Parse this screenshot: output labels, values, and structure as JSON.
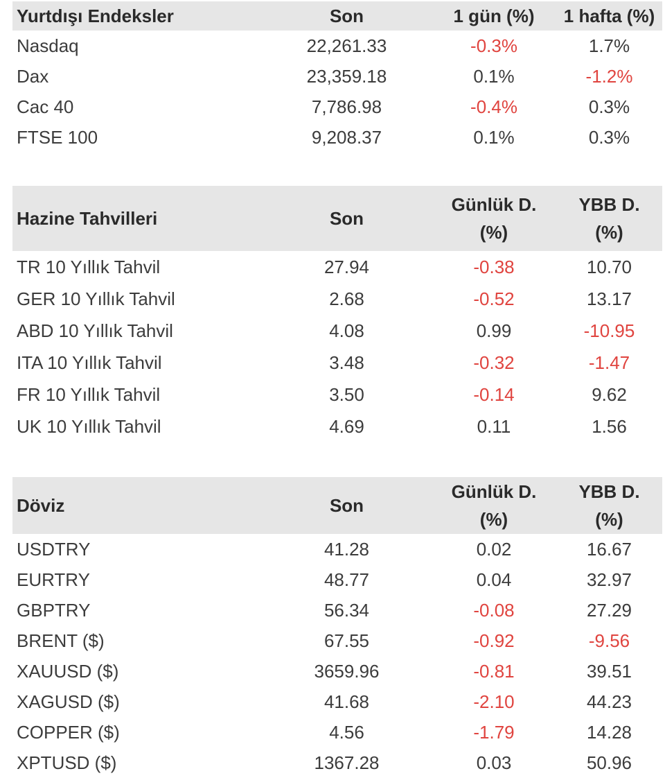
{
  "foreign_indices": {
    "headers": [
      "Yurtdışı Endeksler",
      "Son",
      "1 gün (%)",
      "1 hafta (%)"
    ],
    "rows": [
      {
        "name": "Nasdaq",
        "last": "22,261.33",
        "day": "-0.3%",
        "week": "1.7%",
        "day_neg": true,
        "week_neg": false
      },
      {
        "name": "Dax",
        "last": "23,359.18",
        "day": "0.1%",
        "week": "-1.2%",
        "day_neg": false,
        "week_neg": true
      },
      {
        "name": "Cac 40",
        "last": "7,786.98",
        "day": "-0.4%",
        "week": "0.3%",
        "day_neg": true,
        "week_neg": false
      },
      {
        "name": "FTSE 100",
        "last": "9,208.37",
        "day": "0.1%",
        "week": "0.3%",
        "day_neg": false,
        "week_neg": false
      }
    ]
  },
  "treasury_bonds": {
    "headers": [
      "Hazine Tahvilleri",
      "Son",
      "Günlük D.",
      "(%)",
      "YBB D.",
      "(%)"
    ],
    "rows": [
      {
        "name": "TR 10 Yıllık Tahvil",
        "last": "27.94",
        "day": "-0.38",
        "ytd": "10.70",
        "day_neg": true,
        "ytd_neg": false
      },
      {
        "name": "GER 10 Yıllık Tahvil",
        "last": "2.68",
        "day": "-0.52",
        "ytd": "13.17",
        "day_neg": true,
        "ytd_neg": false
      },
      {
        "name": "ABD 10 Yıllık Tahvil",
        "last": "4.08",
        "day": "0.99",
        "ytd": "-10.95",
        "day_neg": false,
        "ytd_neg": true
      },
      {
        "name": "ITA 10 Yıllık Tahvil",
        "last": "3.48",
        "day": "-0.32",
        "ytd": "-1.47",
        "day_neg": true,
        "ytd_neg": true
      },
      {
        "name": "FR 10 Yıllık Tahvil",
        "last": "3.50",
        "day": "-0.14",
        "ytd": "9.62",
        "day_neg": true,
        "ytd_neg": false
      },
      {
        "name": "UK 10 Yıllık Tahvil",
        "last": "4.69",
        "day": "0.11",
        "ytd": "1.56",
        "day_neg": false,
        "ytd_neg": false
      }
    ]
  },
  "currencies": {
    "headers": [
      "Döviz",
      "Son",
      "Günlük D.",
      "(%)",
      "YBB D.",
      "(%)"
    ],
    "rows": [
      {
        "name": "USDTRY",
        "last": "41.28",
        "day": "0.02",
        "ytd": "16.67",
        "day_neg": false,
        "ytd_neg": false
      },
      {
        "name": "EURTRY",
        "last": "48.77",
        "day": "0.04",
        "ytd": "32.97",
        "day_neg": false,
        "ytd_neg": false
      },
      {
        "name": "GBPTRY",
        "last": "56.34",
        "day": "-0.08",
        "ytd": "27.29",
        "day_neg": true,
        "ytd_neg": false
      },
      {
        "name": "BRENT ($)",
        "last": "67.55",
        "day": "-0.92",
        "ytd": "-9.56",
        "day_neg": true,
        "ytd_neg": true
      },
      {
        "name": "XAUUSD ($)",
        "last": "3659.96",
        "day": "-0.81",
        "ytd": "39.51",
        "day_neg": true,
        "ytd_neg": false
      },
      {
        "name": "XAGUSD ($)",
        "last": "41.68",
        "day": "-2.10",
        "ytd": "44.23",
        "day_neg": true,
        "ytd_neg": false
      },
      {
        "name": "COPPER ($)",
        "last": "4.56",
        "day": "-1.79",
        "ytd": "14.28",
        "day_neg": true,
        "ytd_neg": false
      },
      {
        "name": "XPTUSD ($)",
        "last": "1367.28",
        "day": "0.03",
        "ytd": "50.96",
        "day_neg": false,
        "ytd_neg": false
      }
    ]
  },
  "colors": {
    "negative": "#e0443f",
    "header_bg": "#e6e6e6",
    "text": "#3c3c3c"
  }
}
